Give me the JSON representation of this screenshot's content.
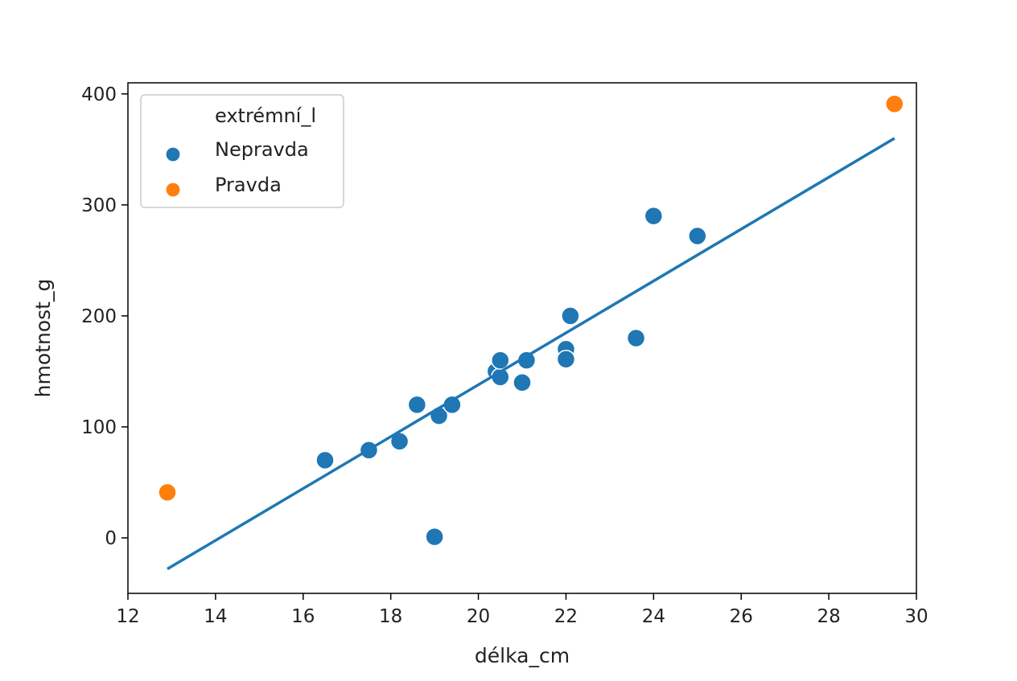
{
  "chart_data": {
    "type": "scatter",
    "title": "",
    "xlabel": "délka_cm",
    "ylabel": "hmotnost_g",
    "xlim": [
      12,
      30
    ],
    "ylim": [
      -50,
      410
    ],
    "xticks": [
      12,
      14,
      16,
      18,
      20,
      22,
      24,
      26,
      28,
      30
    ],
    "yticks": [
      0,
      100,
      200,
      300,
      400
    ],
    "grid": false,
    "legend": {
      "title": "extrémní_l",
      "placement": "top-left",
      "entries": [
        {
          "label": "Nepravda",
          "color": "#1f77b4"
        },
        {
          "label": "Pravda",
          "color": "#ff7f0e"
        }
      ]
    },
    "series": [
      {
        "name": "Nepravda",
        "color": "#1f77b4",
        "points": [
          {
            "x": 16.5,
            "y": 70
          },
          {
            "x": 17.5,
            "y": 79
          },
          {
            "x": 18.2,
            "y": 87
          },
          {
            "x": 18.6,
            "y": 120
          },
          {
            "x": 19.1,
            "y": 110
          },
          {
            "x": 19.4,
            "y": 120
          },
          {
            "x": 19.0,
            "y": 1
          },
          {
            "x": 20.4,
            "y": 150
          },
          {
            "x": 20.5,
            "y": 145
          },
          {
            "x": 20.5,
            "y": 160
          },
          {
            "x": 21.0,
            "y": 140
          },
          {
            "x": 21.1,
            "y": 160
          },
          {
            "x": 22.0,
            "y": 170
          },
          {
            "x": 22.0,
            "y": 161
          },
          {
            "x": 22.1,
            "y": 200
          },
          {
            "x": 23.6,
            "y": 180
          },
          {
            "x": 24.0,
            "y": 290
          },
          {
            "x": 25.0,
            "y": 272
          }
        ]
      },
      {
        "name": "Pravda",
        "color": "#ff7f0e",
        "points": [
          {
            "x": 12.9,
            "y": 41
          },
          {
            "x": 29.5,
            "y": 391
          }
        ]
      }
    ],
    "fit_line": {
      "color": "#1f77b4",
      "x": [
        12.9,
        29.5
      ],
      "y": [
        -28,
        360
      ]
    }
  }
}
